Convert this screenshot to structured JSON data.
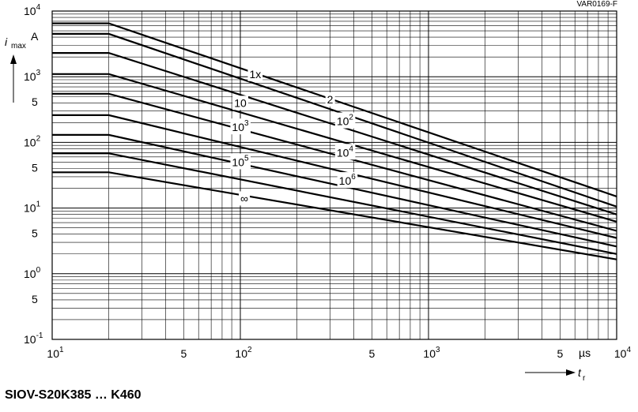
{
  "drawing_code": "VAR0169-F",
  "caption": "SIOV-S20K385 … K460",
  "chart_data": {
    "type": "line",
    "title": "",
    "xlabel": {
      "symbol": "t",
      "subscript": "r"
    },
    "x_unit": "µs",
    "ylabel": {
      "symbol": "i",
      "subscript": "max",
      "unit": "A"
    },
    "x_scale": "log",
    "y_scale": "log",
    "xlim": [
      10,
      10000
    ],
    "ylim": [
      0.1,
      10000
    ],
    "grid": true,
    "x_ticks": [
      {
        "v": 10,
        "base": "10",
        "exp": "1"
      },
      {
        "v": 50,
        "base": "5",
        "exp": ""
      },
      {
        "v": 100,
        "base": "10",
        "exp": "2"
      },
      {
        "v": 500,
        "base": "5",
        "exp": ""
      },
      {
        "v": 1000,
        "base": "10",
        "exp": "3"
      },
      {
        "v": 5000,
        "base": "5",
        "exp": ""
      },
      {
        "v": 10000,
        "base": "10",
        "exp": "4"
      }
    ],
    "y_ticks": [
      {
        "v": 0.1,
        "base": "10",
        "exp": "-1"
      },
      {
        "v": 0.5,
        "base": "5",
        "exp": ""
      },
      {
        "v": 1,
        "base": "10",
        "exp": "0"
      },
      {
        "v": 5,
        "base": "5",
        "exp": ""
      },
      {
        "v": 10,
        "base": "10",
        "exp": "1"
      },
      {
        "v": 50,
        "base": "5",
        "exp": ""
      },
      {
        "v": 100,
        "base": "10",
        "exp": "2"
      },
      {
        "v": 500,
        "base": "5",
        "exp": ""
      },
      {
        "v": 1000,
        "base": "10",
        "exp": "3"
      },
      {
        "v": 10000,
        "base": "10",
        "exp": "4"
      }
    ],
    "series": [
      {
        "label_base": "1x",
        "label_exp": "",
        "points": [
          [
            10,
            6500
          ],
          [
            20,
            6500
          ],
          [
            10000,
            15
          ]
        ],
        "label_at": [
          120,
          1100
        ]
      },
      {
        "label_base": "2",
        "label_exp": "",
        "points": [
          [
            10,
            4500
          ],
          [
            20,
            4500
          ],
          [
            10000,
            10.5
          ]
        ],
        "label_at": [
          300,
          450
        ]
      },
      {
        "label_base": "10",
        "label_exp": "",
        "points": [
          [
            10,
            2300
          ],
          [
            20,
            2300
          ],
          [
            10000,
            8
          ]
        ],
        "label_at": [
          100,
          400
        ]
      },
      {
        "label_base": "10",
        "label_exp": "2",
        "points": [
          [
            10,
            1100
          ],
          [
            20,
            1100
          ],
          [
            10000,
            6.2
          ]
        ],
        "label_at": [
          360,
          210
        ]
      },
      {
        "label_base": "10",
        "label_exp": "3",
        "points": [
          [
            10,
            550
          ],
          [
            20,
            550
          ],
          [
            10000,
            4.5
          ]
        ],
        "label_at": [
          100,
          170
        ]
      },
      {
        "label_base": "10",
        "label_exp": "4",
        "points": [
          [
            10,
            260
          ],
          [
            20,
            260
          ],
          [
            10000,
            3.5
          ]
        ],
        "label_at": [
          360,
          70
        ]
      },
      {
        "label_base": "10",
        "label_exp": "5",
        "points": [
          [
            10,
            130
          ],
          [
            20,
            130
          ],
          [
            10000,
            2.6
          ]
        ],
        "label_at": [
          100,
          50
        ]
      },
      {
        "label_base": "10",
        "label_exp": "6",
        "points": [
          [
            10,
            68
          ],
          [
            20,
            68
          ],
          [
            10000,
            2.0
          ]
        ],
        "label_at": [
          370,
          26
        ]
      },
      {
        "label_base": "∞",
        "label_exp": "",
        "points": [
          [
            10,
            35
          ],
          [
            20,
            35
          ],
          [
            10000,
            1.65
          ]
        ],
        "label_at": [
          105,
          14
        ]
      }
    ]
  }
}
